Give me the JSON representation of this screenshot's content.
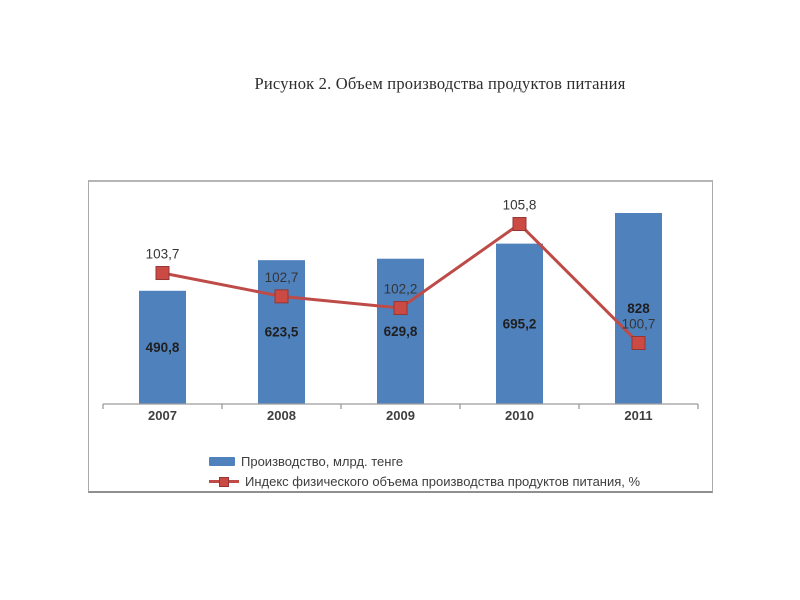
{
  "title": "Рисунок 2. Объем производства продуктов питания",
  "chart_data": {
    "type": "bar",
    "subtype": "bar-line-combo",
    "title": "Рисунок 2. Объем производства продуктов питания",
    "categories": [
      "2007",
      "2008",
      "2009",
      "2010",
      "2011"
    ],
    "series": [
      {
        "name": "Производство, млрд. тенге",
        "type": "bar",
        "color": "#4F81BD",
        "values": [
          490.8,
          623.5,
          629.8,
          695.2,
          828
        ],
        "value_labels": [
          "490,8",
          "623,5",
          "629,8",
          "695,2",
          "828"
        ]
      },
      {
        "name": "Индекс физического объема производства продуктов питания, %",
        "type": "line",
        "color": "#BE4B48",
        "marker_color": "#CB4A44",
        "marker_border": "#943634",
        "values": [
          103.7,
          102.7,
          102.2,
          105.8,
          100.7
        ],
        "value_labels": [
          "103,7",
          "102,7",
          "102,2",
          "105,8",
          "100,7"
        ]
      }
    ],
    "legend_position": "bottom-inside",
    "grid": false,
    "axes": {
      "x_visible": true,
      "y_visible": false,
      "primary_min": 0,
      "secondary_estimated_range": [
        98,
        108
      ]
    },
    "axis_color": "#9c9c9c",
    "label_colors": {
      "bar_label": "#1F1F1F",
      "line_label": "#353535",
      "category_label": "#3F3F3F"
    }
  }
}
